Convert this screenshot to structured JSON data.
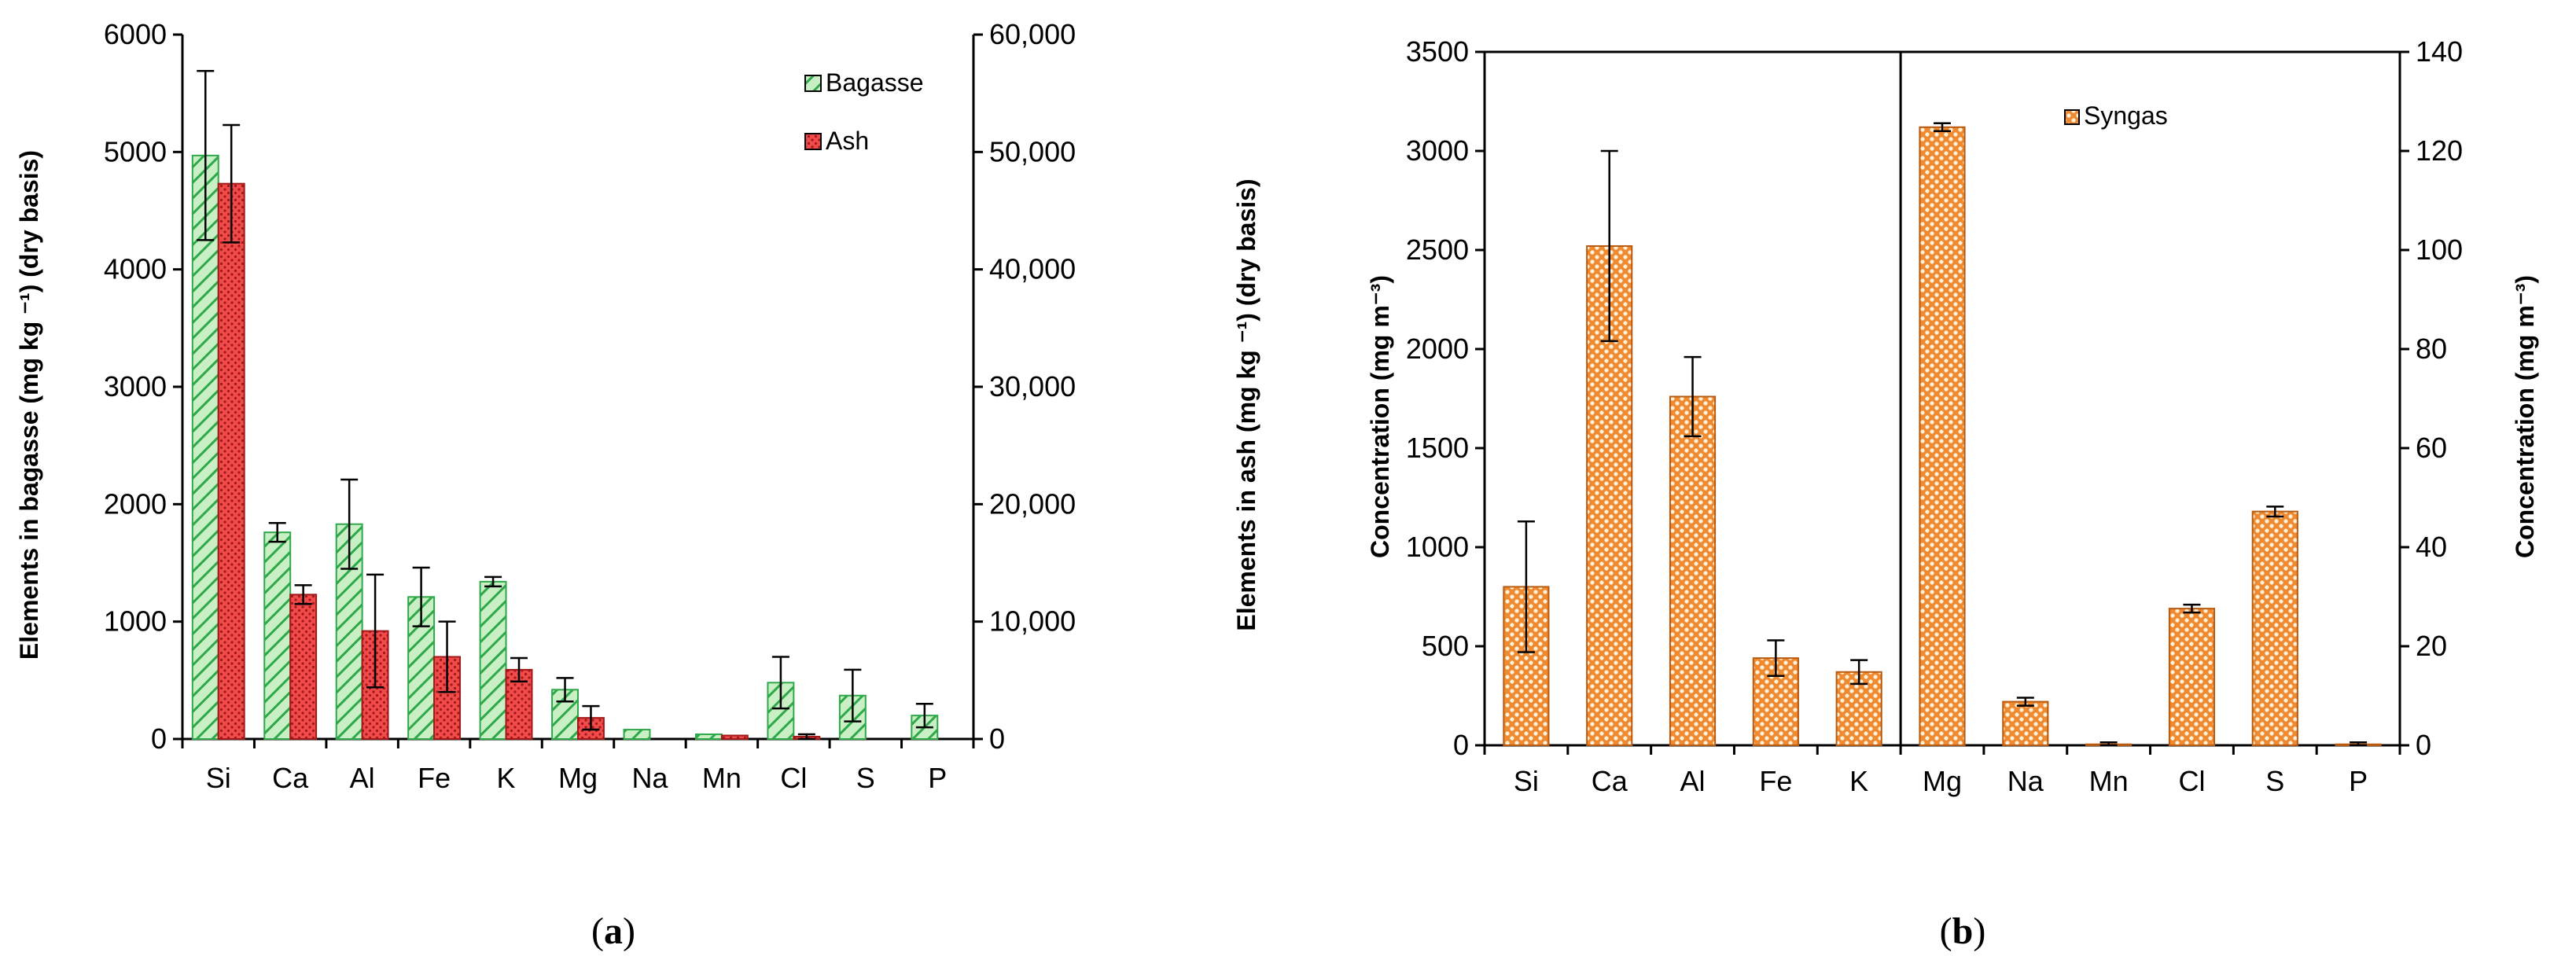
{
  "panels": {
    "a": {
      "open": "(",
      "letter": "a",
      "close": ")"
    },
    "b": {
      "open": "(",
      "letter": "b",
      "close": ")"
    }
  },
  "colors": {
    "bagasse_fill": "#c9f0c5",
    "bagasse_hatch": "#2fa84a",
    "ash_fill": "#f04a4a",
    "ash_dot": "#a01818",
    "syngas_fill": "#f08a30",
    "syngas_dot": "#fff2dc"
  },
  "chart_data": [
    {
      "type": "bar",
      "categories": [
        "Si",
        "Ca",
        "Al",
        "Fe",
        "K",
        "Mg",
        "Na",
        "Mn",
        "Cl",
        "S",
        "P"
      ],
      "ylabel": "Elements in bagasse (mg kg ⁻¹) (dry basis)",
      "y2label": "Elements in ash (mg kg ⁻¹) (dry basis)",
      "ylim": [
        0,
        6000
      ],
      "y2lim": [
        0,
        60000
      ],
      "yticks": [
        "0",
        "1000",
        "2000",
        "3000",
        "4000",
        "5000",
        "6000"
      ],
      "y2ticks": [
        "0",
        "10,000",
        "20,000",
        "30,000",
        "40,000",
        "50,000",
        "60,000"
      ],
      "legend_position": "top-right",
      "series": [
        {
          "name": "Bagasse",
          "axis": "left",
          "values": [
            4970,
            1760,
            1830,
            1210,
            1340,
            420,
            80,
            40,
            480,
            370,
            200
          ],
          "errors": [
            720,
            80,
            380,
            250,
            40,
            100,
            0,
            0,
            220,
            220,
            100
          ]
        },
        {
          "name": "Ash",
          "axis": "right",
          "values": [
            47300,
            12300,
            9200,
            7000,
            5900,
            1800,
            null,
            300,
            200,
            null,
            null
          ],
          "errors": [
            5000,
            800,
            4800,
            3000,
            1000,
            1000,
            0,
            0,
            200,
            0,
            0
          ]
        }
      ]
    },
    {
      "type": "bar",
      "categories": [
        "Si",
        "Ca",
        "Al",
        "Fe",
        "K",
        "Mg",
        "Na",
        "Mn",
        "Cl",
        "S",
        "P"
      ],
      "ylabel": "Concentration  (mg m⁻³)",
      "y2label": "Concentration  (mg m⁻³)",
      "ylim": [
        0,
        3500
      ],
      "y2lim": [
        0,
        140
      ],
      "yticks": [
        "0",
        "500",
        "1000",
        "1500",
        "2000",
        "2500",
        "3000",
        "3500"
      ],
      "y2ticks": [
        "0",
        "20",
        "40",
        "60",
        "80",
        "100",
        "120",
        "140"
      ],
      "legend_position": "top-right",
      "divider_after_index": 4,
      "series": [
        {
          "name": "Syngas",
          "values": [
            800,
            2520,
            1760,
            440,
            370,
            3120,
            220,
            5,
            690,
            1180,
            5
          ],
          "errors": [
            330,
            480,
            200,
            90,
            60,
            20,
            20,
            10,
            20,
            25,
            10
          ]
        }
      ]
    }
  ]
}
